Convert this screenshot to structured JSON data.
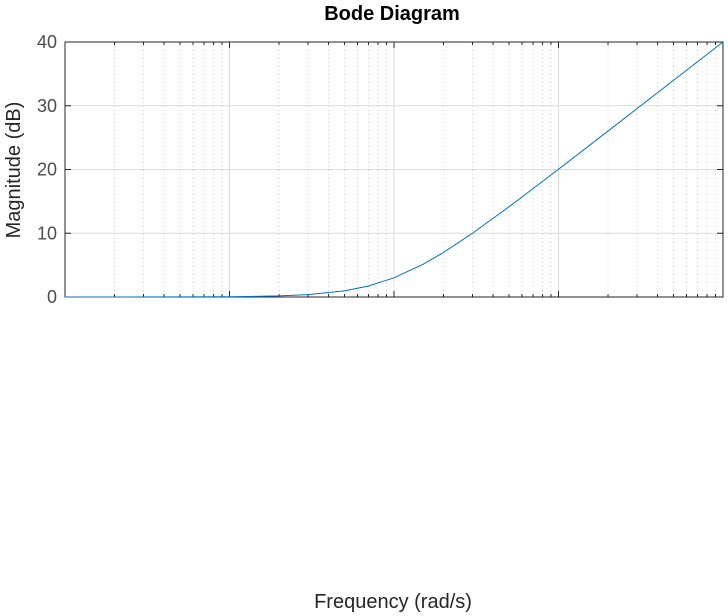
{
  "chart_data": {
    "type": "line",
    "title": "Bode Diagram",
    "xlabel": "Frequency  (rad/s)",
    "ylabel": "Magnitude (dB)",
    "xscale": "log",
    "xlim": [
      0.01,
      100
    ],
    "ylim": [
      0,
      40
    ],
    "yticks": [
      0,
      10,
      20,
      30,
      40
    ],
    "ytick_labels": [
      "0",
      "10",
      "20",
      "30",
      "40"
    ],
    "grid": true,
    "minor_grid_x": true,
    "series": [
      {
        "color": "#0072bd",
        "x": [
          0.01,
          0.02,
          0.05,
          0.1,
          0.2,
          0.3,
          0.5,
          0.7,
          1,
          1.5,
          2,
          3,
          5,
          7,
          10,
          20,
          30,
          50,
          70,
          100
        ],
        "y": [
          0.0004,
          0.0017,
          0.0109,
          0.043,
          0.17,
          0.37,
          0.97,
          1.73,
          3.01,
          5.12,
          6.99,
          10.0,
          14.15,
          17.0,
          20.04,
          26.03,
          29.55,
          33.98,
          36.9,
          40.0
        ]
      }
    ]
  }
}
